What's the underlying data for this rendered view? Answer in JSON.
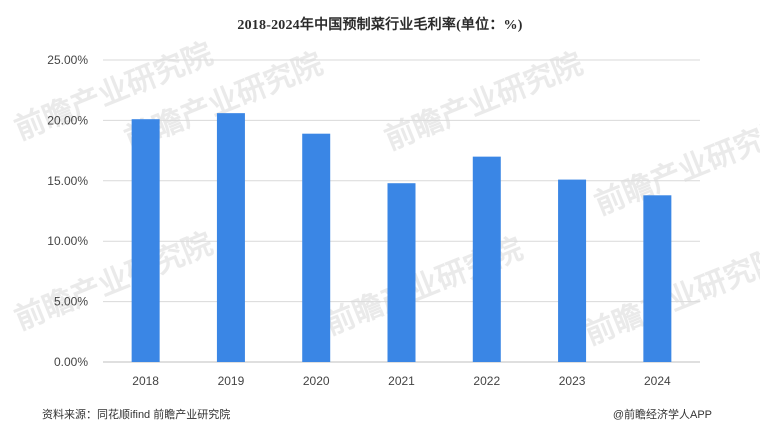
{
  "chart_data": {
    "type": "bar",
    "title": "2018-2024年中国预制菜行业毛利率(单位：%)",
    "categories": [
      "2018",
      "2019",
      "2020",
      "2021",
      "2022",
      "2023",
      "2024"
    ],
    "values": [
      20.1,
      20.6,
      18.9,
      14.8,
      17.0,
      15.1,
      13.8
    ],
    "xlabel": "",
    "ylabel": "",
    "ylim": [
      0,
      25
    ],
    "yticks": [
      "0.00%",
      "5.00%",
      "10.00%",
      "15.00%",
      "20.00%",
      "25.00%"
    ],
    "grid": true,
    "legend": "none",
    "bar_color": "#3a86e5"
  },
  "footer": {
    "source": "资料来源：同花顺ifind 前瞻产业研究院",
    "brand": "@前瞻经济学人APP"
  },
  "watermark": {
    "text": "前瞻产业研究院"
  }
}
